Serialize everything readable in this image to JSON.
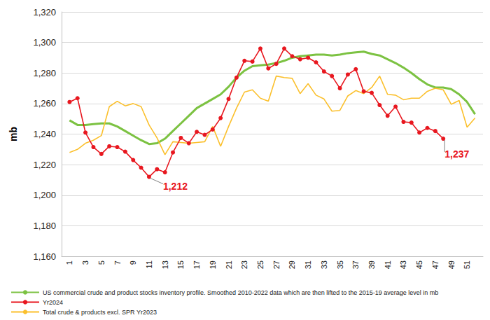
{
  "chart_data": {
    "type": "line",
    "x": [
      1,
      2,
      3,
      4,
      5,
      6,
      7,
      8,
      9,
      10,
      11,
      12,
      13,
      14,
      15,
      16,
      17,
      18,
      19,
      20,
      21,
      22,
      23,
      24,
      25,
      26,
      27,
      28,
      29,
      30,
      31,
      32,
      33,
      34,
      35,
      36,
      37,
      38,
      39,
      40,
      41,
      42,
      43,
      44,
      45,
      46,
      47,
      48,
      49,
      50,
      51,
      52
    ],
    "xlim": [
      0,
      53
    ],
    "xticks": [
      1,
      3,
      5,
      7,
      9,
      11,
      13,
      15,
      17,
      19,
      21,
      23,
      25,
      27,
      29,
      31,
      33,
      35,
      37,
      39,
      41,
      43,
      45,
      47,
      49,
      51
    ],
    "ylabel": "mb",
    "ylim": [
      1160,
      1320
    ],
    "yticks": [
      {
        "value": 1160,
        "label": "1,160"
      },
      {
        "value": 1180,
        "label": "1,180"
      },
      {
        "value": 1200,
        "label": "1,200"
      },
      {
        "value": 1220,
        "label": "1,220"
      },
      {
        "value": 1240,
        "label": "1,240"
      },
      {
        "value": 1260,
        "label": "1,260"
      },
      {
        "value": 1280,
        "label": "1,280"
      },
      {
        "value": 1300,
        "label": "1,300"
      },
      {
        "value": 1320,
        "label": "1,320"
      }
    ],
    "grid": true,
    "legend": "bottom-left",
    "series": [
      {
        "name": "US commercial crude and product stocks inventory profile. Smoothed 2010-2022 data which are then lifted to the 2015-19 average level in mb",
        "color": "#7cc242",
        "marker": "none",
        "line_style": "thick",
        "values": [
          1249,
          1246,
          1246,
          1246.5,
          1247,
          1247,
          1245,
          1242,
          1239,
          1236,
          1233.5,
          1234,
          1237,
          1242,
          1247,
          1252,
          1257,
          1260,
          1263,
          1266,
          1271,
          1277,
          1281.5,
          1284.5,
          1285,
          1285.5,
          1286.5,
          1288,
          1290,
          1291,
          1291.5,
          1292,
          1292,
          1291.5,
          1292,
          1293,
          1293.5,
          1294,
          1292.5,
          1291.5,
          1289,
          1286.5,
          1283.5,
          1280,
          1276,
          1272.5,
          1270.5,
          1270.5,
          1269.5,
          1266,
          1261,
          1253
        ]
      },
      {
        "name": "Yr2024",
        "color": "#e8171f",
        "marker": "circle",
        "line_style": "solid",
        "values": [
          1261,
          1263.5,
          1241,
          1231.5,
          1227,
          1232,
          1231.5,
          1228.5,
          1223,
          1218,
          1212,
          1217,
          1215,
          1228,
          1237.5,
          1234,
          1241.5,
          1239.5,
          1243,
          1250.5,
          1263,
          1277,
          1288,
          1287.5,
          1296,
          1283,
          1286,
          1296,
          1291,
          1289,
          1290,
          1287,
          1281,
          1278,
          1270,
          1279,
          1282.5,
          1268,
          1267,
          1259,
          1252,
          1258,
          1248,
          1247.5,
          1241,
          1244,
          1242,
          1237,
          null,
          null,
          null,
          null
        ]
      },
      {
        "name": "Total crude & products excl. SPR Yr2023",
        "color": "#fbc02d",
        "marker": "none",
        "line_style": "solid",
        "values": [
          1228,
          1230,
          1234,
          1236,
          1239,
          1258,
          1261.5,
          1258.5,
          1260,
          1258,
          1246,
          1237.5,
          1226.5,
          1235,
          1234.5,
          1234,
          1234.5,
          1235,
          1245,
          1232,
          1245,
          1257,
          1267.5,
          1269,
          1263.5,
          1261.5,
          1278,
          1277,
          1276.5,
          1266.5,
          1273,
          1265.5,
          1263,
          1255,
          1255.5,
          1265,
          1268.5,
          1266.5,
          1270.5,
          1278,
          1266,
          1265.5,
          1262.5,
          1263.5,
          1263.5,
          1268,
          1270,
          1269,
          1259.5,
          1262,
          1244.5,
          1250.5
        ]
      }
    ],
    "annotations": [
      {
        "text": "1,212",
        "x": 11,
        "y": 1212,
        "color": "#e8171f"
      },
      {
        "text": "1,237",
        "x": 48,
        "y": 1237,
        "color": "#e8171f"
      }
    ]
  }
}
